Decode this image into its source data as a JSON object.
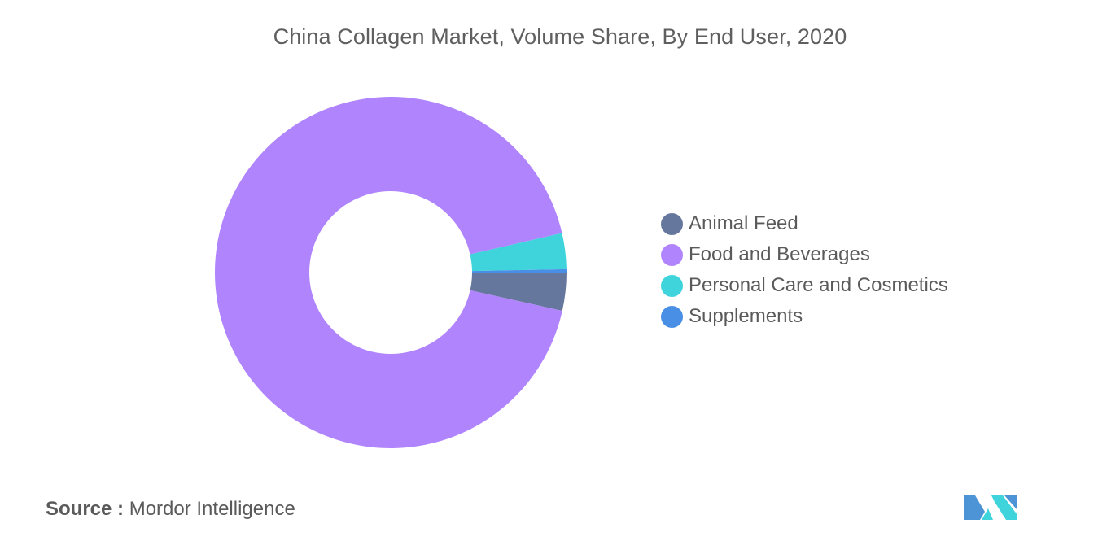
{
  "chart_data": {
    "type": "pie",
    "title": "China Collagen Market, Volume Share, By End User, 2020",
    "categories": [
      "Animal Feed",
      "Food and Beverages",
      "Personal Care and Cosmetics",
      "Supplements"
    ],
    "values": [
      3.5,
      92.9,
      3.3,
      0.3
    ],
    "unit": "%",
    "donut": true,
    "legend_position": "right",
    "colors": [
      "#66779d",
      "#b084fd",
      "#3fd4dc",
      "#4a8fe6"
    ]
  },
  "source": {
    "label": "Source :",
    "text": "Mordor Intelligence"
  },
  "logo": {
    "icon": "mordor-intelligence-logo",
    "colors": [
      "#4c94d6",
      "#3fd4dc"
    ]
  }
}
